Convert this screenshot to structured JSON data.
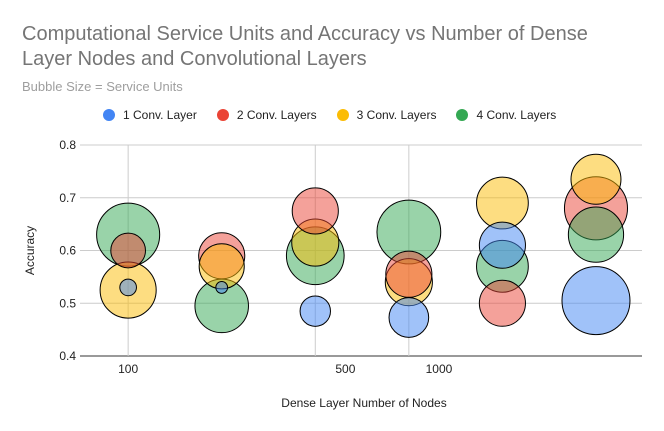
{
  "chart_data": {
    "type": "bubble",
    "title": "Computational Service Units and Accuracy vs Number of Dense Layer Nodes and Convolutional Layers",
    "subtitle": "Bubble Size = Service Units",
    "xlabel": "Dense Layer Number of Nodes",
    "ylabel": "Accuracy",
    "x_scale": "log",
    "xlim": [
      70,
      4500
    ],
    "ylim": [
      0.4,
      0.8
    ],
    "x_ticks": [
      100,
      500,
      1000
    ],
    "x_tick_labels": [
      "100",
      "500",
      "1000"
    ],
    "y_ticks": [
      0.4,
      0.5,
      0.6,
      0.7,
      0.8
    ],
    "y_tick_labels": [
      "0.4",
      "0.5",
      "0.6",
      "0.7",
      "0.8"
    ],
    "x_gridlines": [
      100,
      400,
      800
    ],
    "series": [
      {
        "name": "1 Conv. Layer",
        "color": "#4285f4",
        "points": [
          {
            "x": 100,
            "y": 0.53,
            "size": 30
          },
          {
            "x": 200,
            "y": 0.53,
            "size": 15
          },
          {
            "x": 400,
            "y": 0.485,
            "size": 100
          },
          {
            "x": 800,
            "y": 0.473,
            "size": 170
          },
          {
            "x": 1600,
            "y": 0.61,
            "size": 230
          },
          {
            "x": 3200,
            "y": 0.505,
            "size": 500
          }
        ]
      },
      {
        "name": "2 Conv. Layers",
        "color": "#ea4335",
        "points": [
          {
            "x": 100,
            "y": 0.6,
            "size": 130
          },
          {
            "x": 200,
            "y": 0.59,
            "size": 230
          },
          {
            "x": 400,
            "y": 0.675,
            "size": 230
          },
          {
            "x": 800,
            "y": 0.555,
            "size": 230
          },
          {
            "x": 1600,
            "y": 0.5,
            "size": 230
          },
          {
            "x": 3200,
            "y": 0.68,
            "size": 430
          }
        ]
      },
      {
        "name": "3 Conv. Layers",
        "color": "#fbbc04",
        "points": [
          {
            "x": 100,
            "y": 0.525,
            "size": 340
          },
          {
            "x": 200,
            "y": 0.57,
            "size": 220
          },
          {
            "x": 400,
            "y": 0.615,
            "size": 240
          },
          {
            "x": 800,
            "y": 0.54,
            "size": 240
          },
          {
            "x": 1600,
            "y": 0.69,
            "size": 290
          },
          {
            "x": 3200,
            "y": 0.735,
            "size": 270
          }
        ]
      },
      {
        "name": "4 Conv. Layers",
        "color": "#34a853",
        "points": [
          {
            "x": 100,
            "y": 0.63,
            "size": 430
          },
          {
            "x": 200,
            "y": 0.495,
            "size": 310
          },
          {
            "x": 400,
            "y": 0.59,
            "size": 360
          },
          {
            "x": 800,
            "y": 0.635,
            "size": 440
          },
          {
            "x": 1600,
            "y": 0.57,
            "size": 290
          },
          {
            "x": 3200,
            "y": 0.63,
            "size": 330
          }
        ]
      }
    ]
  }
}
